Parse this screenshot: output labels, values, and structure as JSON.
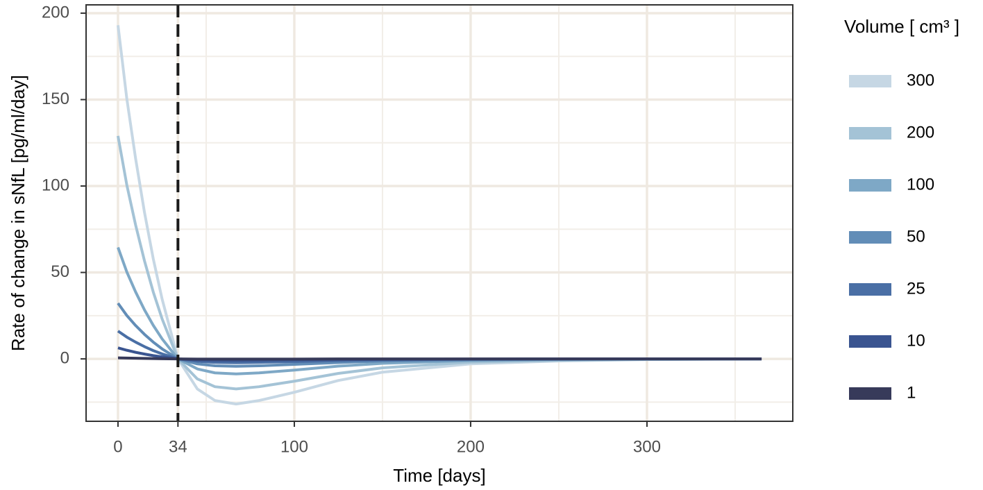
{
  "chart_data": {
    "type": "line",
    "x_label": "Time [days]",
    "y_label": "Rate of change in sNfL [pg/ml/day]",
    "legend_title": "Volume [ cm³ ]",
    "legend_position": "right",
    "x": [
      0,
      5,
      10,
      15,
      20,
      25,
      34,
      45,
      55,
      67,
      80,
      100,
      125,
      150,
      200,
      250,
      300,
      365
    ],
    "series": [
      {
        "name": "300",
        "color": "#c6d7e4",
        "values": [
          193,
          150.5,
          115.8,
          84.9,
          57.9,
          34.7,
          0,
          -17.4,
          -24.1,
          -26.1,
          -24.1,
          -19.3,
          -12.5,
          -7.7,
          -2.9,
          -1.2,
          -0.4,
          0
        ]
      },
      {
        "name": "200",
        "color": "#a4c3d6",
        "values": [
          129,
          100.6,
          77.4,
          56.8,
          38.7,
          23.2,
          0,
          -11.6,
          -16.1,
          -17.4,
          -16.1,
          -12.9,
          -8.4,
          -5.2,
          -1.9,
          -0.8,
          -0.3,
          0
        ]
      },
      {
        "name": "100",
        "color": "#7ea8c6",
        "values": [
          64.5,
          50.3,
          38.7,
          28.4,
          19.4,
          11.6,
          0,
          -5.8,
          -8.1,
          -8.7,
          -8.1,
          -6.5,
          -4.2,
          -2.6,
          -1.0,
          -0.4,
          -0.1,
          0
        ]
      },
      {
        "name": "50",
        "color": "#628db7",
        "values": [
          32.2,
          25.1,
          19.3,
          14.2,
          9.7,
          5.8,
          0,
          -2.9,
          -4.0,
          -4.3,
          -4.0,
          -3.2,
          -2.1,
          -1.3,
          -0.5,
          -0.2,
          -0.1,
          0
        ]
      },
      {
        "name": "25",
        "color": "#4a6fa5",
        "values": [
          16.1,
          12.6,
          9.7,
          7.1,
          4.8,
          2.9,
          0,
          -1.4,
          -2.0,
          -2.2,
          -2.0,
          -1.6,
          -1.0,
          -0.6,
          -0.2,
          -0.1,
          0,
          0
        ]
      },
      {
        "name": "10",
        "color": "#3a5490",
        "values": [
          6.4,
          5.0,
          3.8,
          2.8,
          1.9,
          1.2,
          0,
          -0.6,
          -0.8,
          -0.9,
          -0.8,
          -0.6,
          -0.4,
          -0.3,
          -0.1,
          0,
          0,
          0
        ]
      },
      {
        "name": "1",
        "color": "#373a5a",
        "values": [
          0.6,
          0.5,
          0.4,
          0.3,
          0.2,
          0.1,
          0,
          -0.1,
          -0.1,
          -0.1,
          -0.1,
          -0.1,
          0,
          0,
          0,
          0,
          0,
          0
        ]
      }
    ],
    "xlim": [
      -18.1,
      382.7
    ],
    "ylim": [
      -36.1,
      204.8
    ],
    "xticks": [
      0,
      34,
      100,
      200,
      300
    ],
    "yticks": [
      0,
      50,
      100,
      150,
      200
    ],
    "x_minor_grid": [
      50,
      150,
      250,
      350
    ],
    "y_minor_grid": [
      -25,
      25,
      75,
      125,
      175
    ],
    "vline": 34,
    "grid": true
  }
}
